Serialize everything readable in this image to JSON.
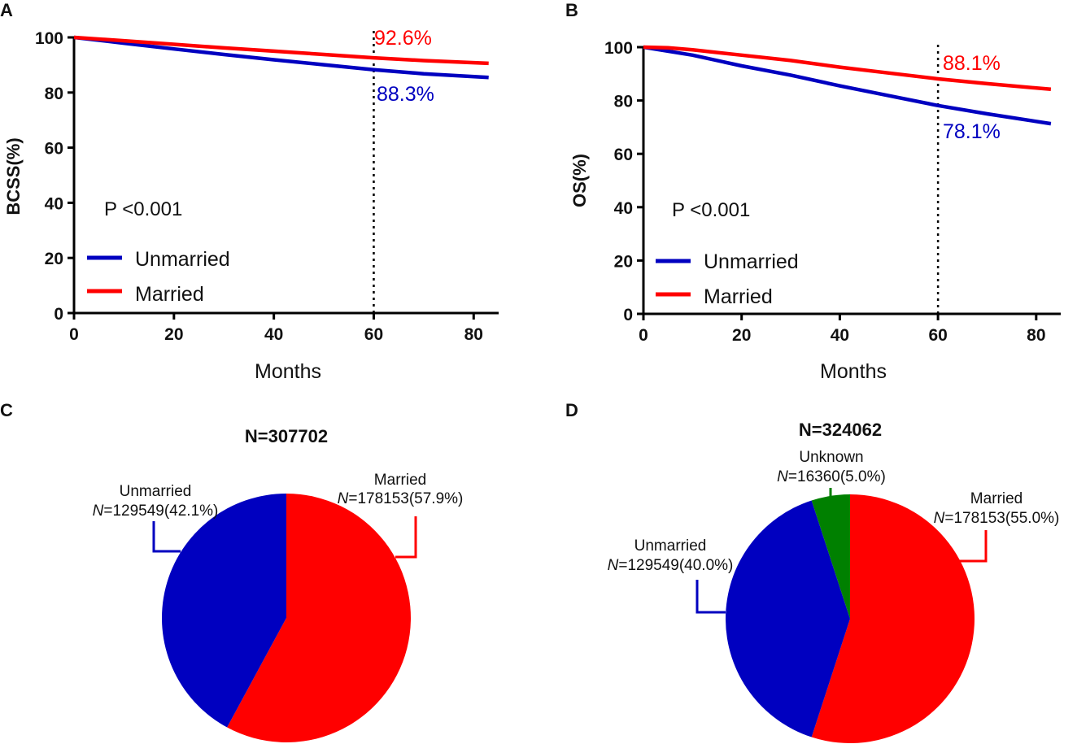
{
  "colors": {
    "unmarried": "#0000c0",
    "married": "#ff0000",
    "unknown": "#008000",
    "axis": "#000000"
  },
  "chart_data": [
    {
      "panel": "A",
      "type": "line",
      "xlabel": "Months",
      "ylabel": "BCSS(%)",
      "xlim": [
        0,
        85
      ],
      "ylim": [
        0,
        100
      ],
      "xticks": [
        0,
        20,
        40,
        60,
        80
      ],
      "yticks": [
        0,
        20,
        40,
        60,
        80,
        100
      ],
      "vline": 60,
      "p_value": "P <0.001",
      "legend_position": "bottom-left",
      "series": [
        {
          "name": "Unmarried",
          "color": "#0000c0",
          "x": [
            0,
            10,
            20,
            30,
            40,
            50,
            60,
            70,
            83
          ],
          "y": [
            100,
            97.9,
            95.8,
            93.8,
            91.9,
            90.1,
            88.3,
            86.8,
            85.5
          ],
          "label": "88.3%"
        },
        {
          "name": "Married",
          "color": "#ff0000",
          "x": [
            0,
            10,
            20,
            30,
            40,
            50,
            60,
            70,
            83
          ],
          "y": [
            100,
            98.8,
            97.5,
            96.2,
            95.0,
            93.8,
            92.6,
            91.6,
            90.6
          ],
          "label": "92.6%"
        }
      ]
    },
    {
      "panel": "B",
      "type": "line",
      "xlabel": "Months",
      "ylabel": "OS(%)",
      "xlim": [
        0,
        85
      ],
      "ylim": [
        0,
        100
      ],
      "xticks": [
        0,
        20,
        40,
        60,
        80
      ],
      "yticks": [
        0,
        20,
        40,
        60,
        80,
        100
      ],
      "vline": 60,
      "p_value": "P <0.001",
      "legend_position": "bottom-left",
      "series": [
        {
          "name": "Unmarried",
          "color": "#0000c0",
          "x": [
            0,
            10,
            20,
            30,
            40,
            50,
            60,
            70,
            83
          ],
          "y": [
            100,
            97.0,
            93.0,
            89.5,
            85.5,
            81.8,
            78.1,
            75.0,
            71.3
          ],
          "label": "78.1%"
        },
        {
          "name": "Married",
          "color": "#ff0000",
          "x": [
            0,
            5,
            10,
            20,
            30,
            40,
            50,
            60,
            70,
            83
          ],
          "y": [
            100,
            99.8,
            99.0,
            97.0,
            95.0,
            92.5,
            90.3,
            88.1,
            86.3,
            84.2
          ],
          "label": "88.1%"
        }
      ]
    },
    {
      "panel": "C",
      "type": "pie",
      "title": "N=307702",
      "slices": [
        {
          "name": "Married",
          "value": 57.9,
          "n_prefix": "N",
          "n_text": "=178153(57.9%)",
          "color": "#ff0000"
        },
        {
          "name": "Unmarried",
          "value": 42.1,
          "n_prefix": "N",
          "n_text": "=129549(42.1%)",
          "color": "#0000c0"
        }
      ]
    },
    {
      "panel": "D",
      "type": "pie",
      "title": "N=324062",
      "slices": [
        {
          "name": "Married",
          "value": 55.0,
          "n_prefix": "N",
          "n_text": "=178153(55.0%)",
          "color": "#ff0000"
        },
        {
          "name": "Unmarried",
          "value": 40.0,
          "n_prefix": "N",
          "n_text": "=129549(40.0%)",
          "color": "#0000c0"
        },
        {
          "name": "Unknown",
          "value": 5.0,
          "n_prefix": "N",
          "n_text": "=16360(5.0%)",
          "color": "#008000"
        }
      ]
    }
  ]
}
